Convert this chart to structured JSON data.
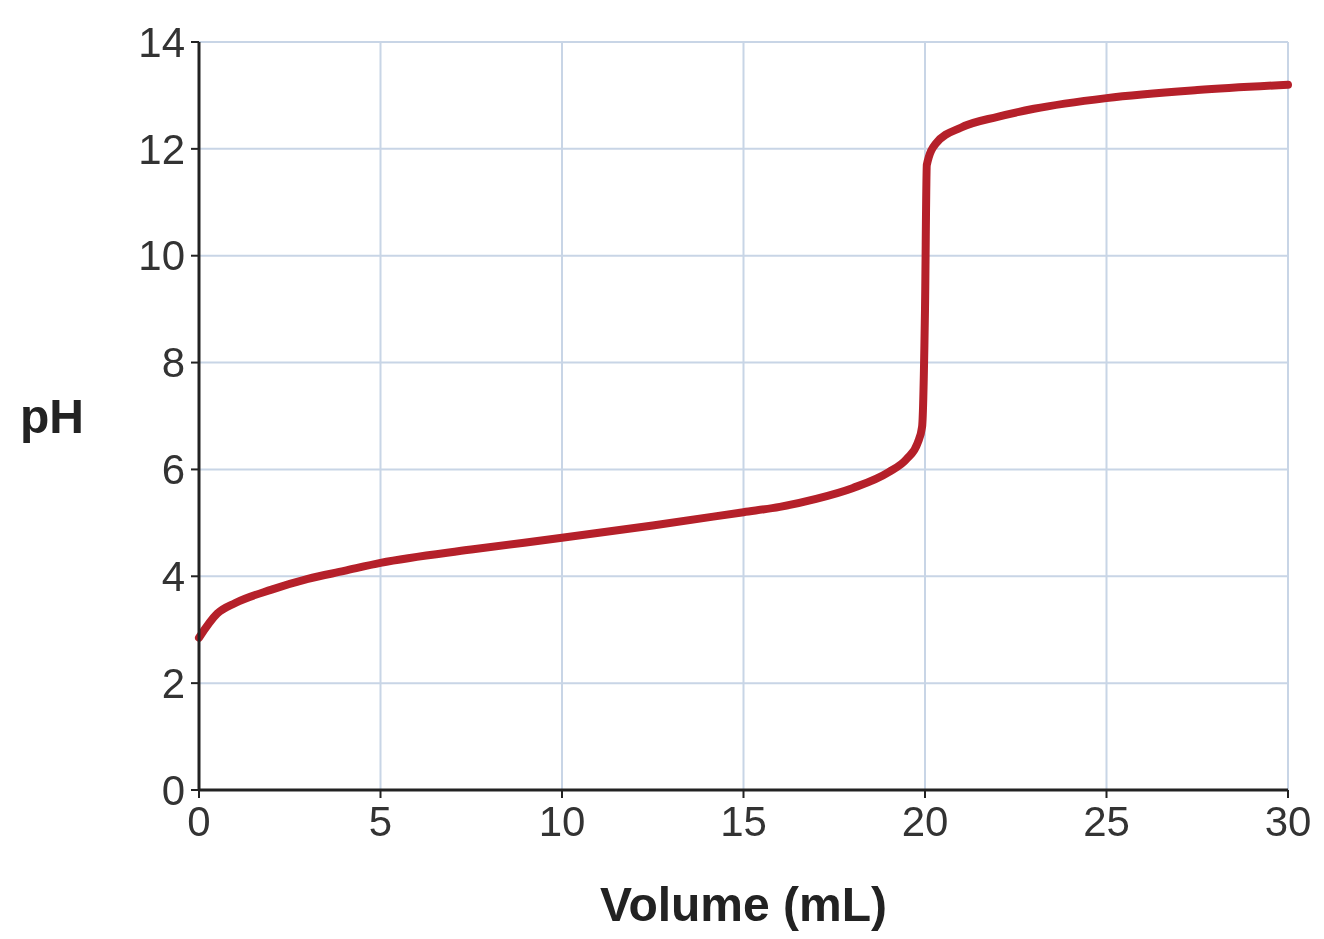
{
  "chart_data": {
    "type": "line",
    "xlabel": "Volume (mL)",
    "ylabel": "pH",
    "x": [
      0,
      0.5,
      1,
      2,
      3,
      4,
      5,
      7.5,
      10,
      12.5,
      15,
      16,
      17,
      18,
      19,
      19.5,
      19.8,
      19.92,
      20,
      20.05,
      20.3,
      21,
      22,
      23,
      25,
      27.5,
      30
    ],
    "series": [
      {
        "color": "#b5202a",
        "values": [
          2.85,
          3.3,
          3.5,
          3.75,
          3.95,
          4.1,
          4.25,
          4.5,
          4.72,
          4.95,
          5.2,
          5.3,
          5.45,
          5.65,
          5.95,
          6.2,
          6.5,
          6.8,
          9,
          11.7,
          12.1,
          12.4,
          12.6,
          12.75,
          12.95,
          13.1,
          13.2
        ]
      }
    ],
    "xlim": [
      0,
      30
    ],
    "xticks": [
      0,
      5,
      10,
      15,
      20,
      25,
      30
    ],
    "ylim": [
      0,
      14
    ],
    "yticks": [
      0,
      2,
      4,
      6,
      8,
      10,
      12,
      14
    ],
    "grid": true,
    "marker": "none",
    "line_style": "solid"
  }
}
